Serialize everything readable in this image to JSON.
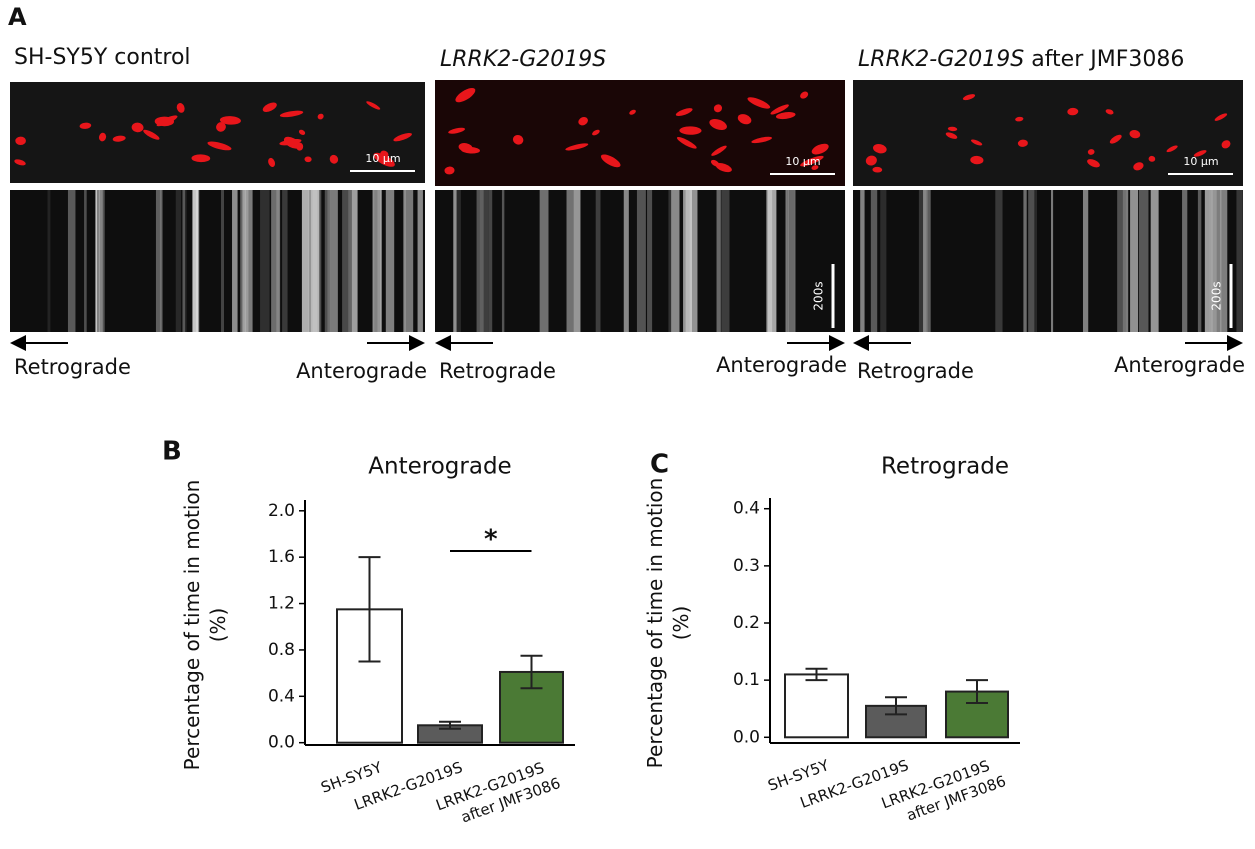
{
  "panel_a": {
    "label": "A",
    "panels": [
      {
        "title": "SH-SY5Y control",
        "scale_bar": "10 µm",
        "retro": "Retrograde",
        "antero": "Anterograde"
      },
      {
        "title_italic": "LRRK2-G2019S",
        "scale_bar": "10 µm",
        "time_bar": "200s",
        "retro": "Retrograde",
        "antero": "Anterograde"
      },
      {
        "title_italic": "LRRK2-G2019S",
        "title_rest": "after JMF3086",
        "scale_bar": "10 µm",
        "time_bar": "200s",
        "retro": "Retrograde",
        "antero": "Anterograde"
      }
    ]
  },
  "chart_data": [
    {
      "type": "bar",
      "panel_label": "B",
      "title": "Anterograde",
      "ylabel": "Percentage of time in motion (%)",
      "categories": [
        "SH-SY5Y",
        "LRRK2-G2019S",
        "LRRK2-G2019S after JMF3086"
      ],
      "values": [
        1.15,
        0.15,
        0.61
      ],
      "errors": [
        0.45,
        0.03,
        0.14
      ],
      "colors": [
        "#ffffff",
        "#5b5b5b",
        "#4b7a35"
      ],
      "ylim": [
        -0.02,
        2.05
      ],
      "yticks": [
        {
          "value": 0,
          "label": "0.0"
        },
        0.4,
        0.8,
        1.2,
        1.6,
        {
          "value": 2,
          "label": "2.0"
        }
      ],
      "annotation": {
        "text": "*",
        "from": 1,
        "to": 2
      }
    },
    {
      "type": "bar",
      "panel_label": "C",
      "title": "Retrograde",
      "ylabel": "Percentage of time in motion (%)",
      "categories": [
        "SH-SY5Y",
        "LRRK2-G2019S",
        "LRRK2-G2019S after JMF3086"
      ],
      "values": [
        0.11,
        0.055,
        0.08
      ],
      "errors": [
        0.01,
        0.015,
        0.02
      ],
      "colors": [
        "#ffffff",
        "#5b5b5b",
        "#4b7a35"
      ],
      "ylim": [
        -0.01,
        0.41
      ],
      "yticks": [
        {
          "value": 0,
          "label": "0.0"
        },
        0.1,
        0.2,
        0.3,
        0.4
      ]
    }
  ]
}
